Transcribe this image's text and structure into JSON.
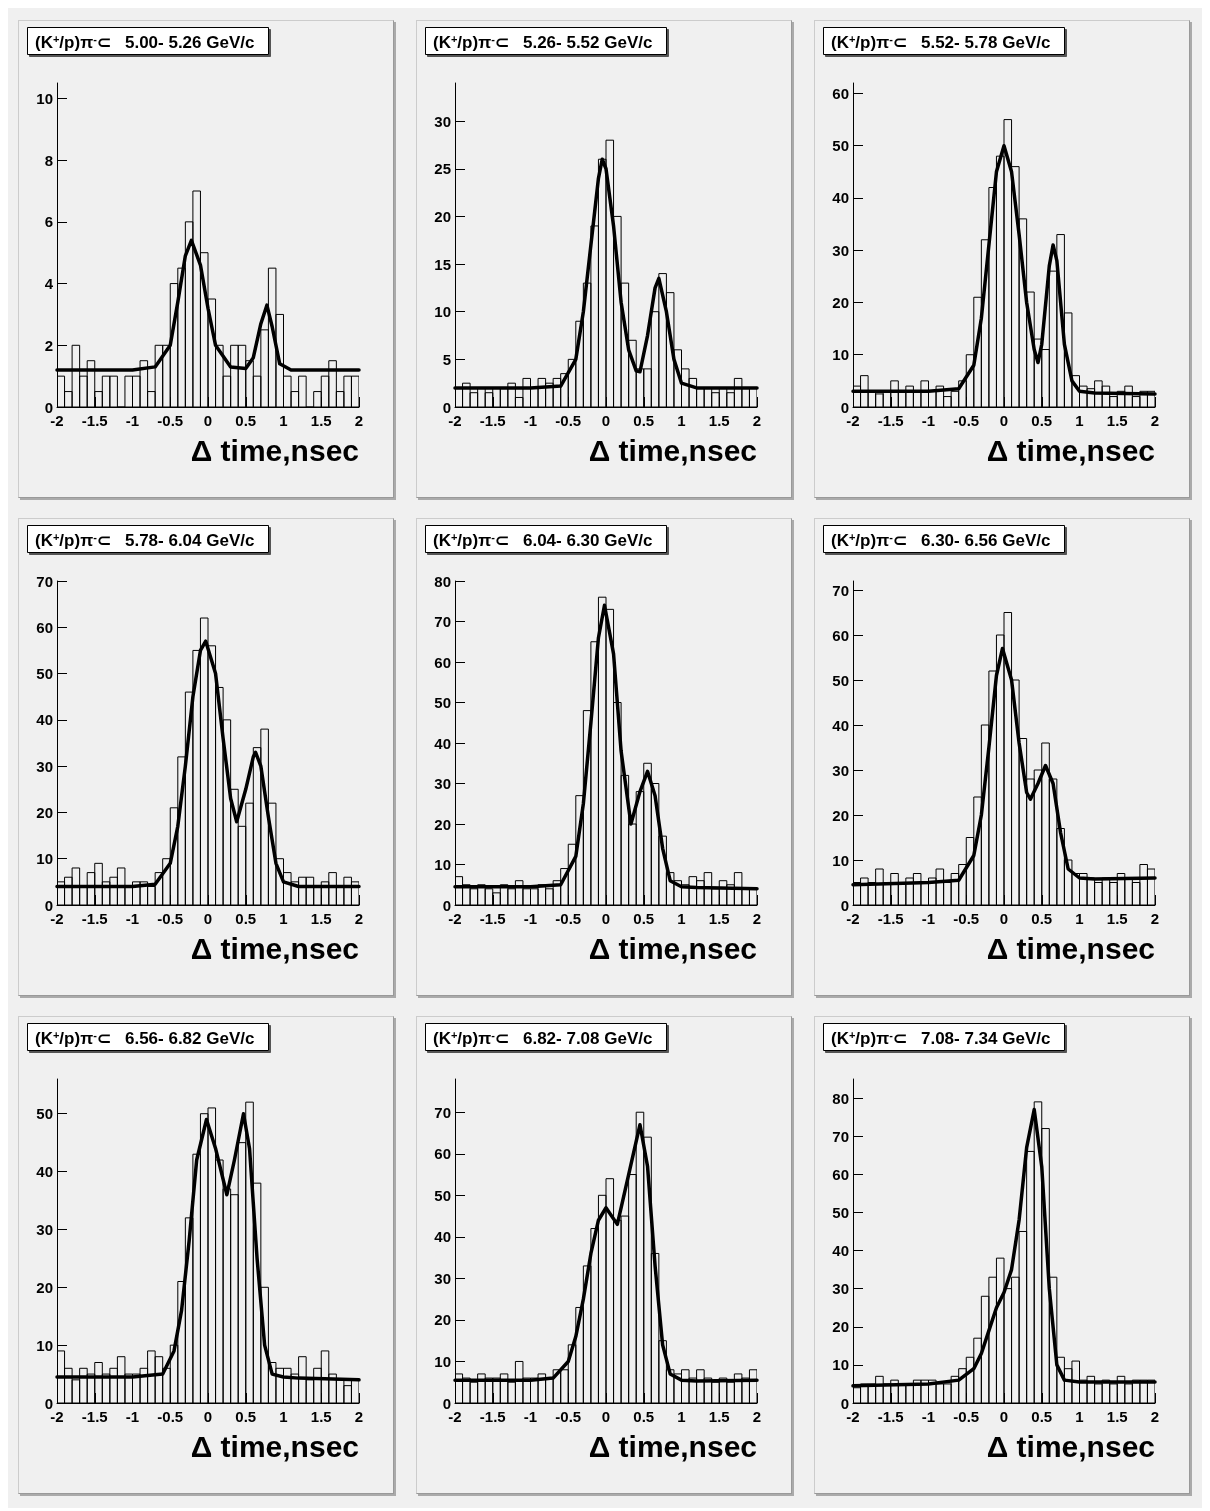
{
  "chart_data": [
    {
      "type": "histogram",
      "title": "(K$^{+}$/p)π$^{-}$⊂   5.00- 5.26 GeV/c",
      "xlabel": "Δ time,nsec",
      "xlim": [
        -2,
        2
      ],
      "xticks": [
        -2,
        -1.5,
        -1,
        -0.5,
        0,
        0.5,
        1,
        1.5,
        2
      ],
      "ylim": [
        0,
        10.5
      ],
      "yticks": [
        0,
        2,
        4,
        6,
        8,
        10
      ],
      "bins": [
        -2,
        -1.9,
        -1.8,
        -1.7,
        -1.6,
        -1.5,
        -1.4,
        -1.3,
        -1.2,
        -1.1,
        -1,
        -0.9,
        -0.8,
        -0.7,
        -0.6,
        -0.5,
        -0.4,
        -0.3,
        -0.2,
        -0.1,
        0,
        0.1,
        0.2,
        0.3,
        0.4,
        0.5,
        0.6,
        0.7,
        0.8,
        0.9,
        1,
        1.1,
        1.2,
        1.3,
        1.4,
        1.5,
        1.6,
        1.7,
        1.8,
        1.9,
        2
      ],
      "series": [
        {
          "type": "histogram",
          "color": "#000000",
          "values": [
            1,
            0.5,
            2,
            1,
            1.5,
            0.5,
            1,
            1,
            0,
            1,
            1,
            1.5,
            0.5,
            2,
            2,
            4,
            4.5,
            6,
            7,
            5,
            3.5,
            2,
            1,
            2,
            2,
            1.5,
            1,
            2.5,
            4.5,
            3,
            1,
            0.5,
            1,
            0,
            0.5,
            1,
            1.5,
            0.5,
            1,
            1
          ]
        },
        {
          "type": "line",
          "color": "#000000",
          "x": [
            -2,
            -1,
            -0.7,
            -0.5,
            -0.4,
            -0.3,
            -0.22,
            -0.1,
            0,
            0.1,
            0.3,
            0.5,
            0.6,
            0.7,
            0.78,
            0.85,
            0.95,
            1.1,
            2
          ],
          "values": [
            1.2,
            1.2,
            1.3,
            2,
            3.4,
            4.9,
            5.4,
            4.6,
            3.2,
            2,
            1.3,
            1.25,
            1.6,
            2.7,
            3.3,
            2.6,
            1.4,
            1.2,
            1.2
          ]
        }
      ]
    },
    {
      "type": "histogram",
      "title": "(K$^{+}$/p)π$^{-}$⊂   5.26- 5.52 GeV/c",
      "xlabel": "Δ time,nsec",
      "xlim": [
        -2,
        2
      ],
      "xticks": [
        -2,
        -1.5,
        -1,
        -0.5,
        0,
        0.5,
        1,
        1.5,
        2
      ],
      "ylim": [
        0,
        34
      ],
      "yticks": [
        0,
        5,
        10,
        15,
        20,
        25,
        30
      ],
      "bins": [
        -2,
        -1.9,
        -1.8,
        -1.7,
        -1.6,
        -1.5,
        -1.4,
        -1.3,
        -1.2,
        -1.1,
        -1,
        -0.9,
        -0.8,
        -0.7,
        -0.6,
        -0.5,
        -0.4,
        -0.3,
        -0.2,
        -0.1,
        0,
        0.1,
        0.2,
        0.3,
        0.4,
        0.5,
        0.6,
        0.7,
        0.8,
        0.9,
        1,
        1.1,
        1.2,
        1.3,
        1.4,
        1.5,
        1.6,
        1.7,
        1.8,
        1.9,
        2
      ],
      "series": [
        {
          "type": "histogram",
          "color": "#000000",
          "values": [
            2,
            2.5,
            1.5,
            2,
            1.5,
            2,
            2,
            2.5,
            1,
            3,
            2,
            3,
            2.5,
            3,
            3.5,
            5,
            9,
            13,
            19,
            26,
            28,
            20,
            13,
            7,
            4,
            4,
            10,
            14,
            12,
            6,
            4,
            3,
            2,
            2,
            1.5,
            2,
            1.5,
            3,
            2,
            2
          ]
        },
        {
          "type": "line",
          "color": "#000000",
          "x": [
            -2,
            -1,
            -0.6,
            -0.4,
            -0.3,
            -0.2,
            -0.1,
            -0.05,
            0,
            0.1,
            0.2,
            0.3,
            0.4,
            0.45,
            0.55,
            0.65,
            0.7,
            0.8,
            0.9,
            1,
            1.2,
            2
          ],
          "values": [
            2,
            2,
            2.2,
            5,
            10,
            17,
            24,
            26,
            25,
            19,
            11,
            6,
            3.8,
            3.7,
            7.5,
            12.5,
            13.5,
            10,
            5,
            2.5,
            2,
            2
          ]
        }
      ]
    },
    {
      "type": "histogram",
      "title": "(K$^{+}$/p)π$^{-}$⊂   5.52- 5.78 GeV/c",
      "xlabel": "Δ time,nsec",
      "xlim": [
        -2,
        2
      ],
      "xticks": [
        -2,
        -1.5,
        -1,
        -0.5,
        0,
        0.5,
        1,
        1.5,
        2
      ],
      "ylim": [
        0,
        62
      ],
      "yticks": [
        0,
        10,
        20,
        30,
        40,
        50,
        60
      ],
      "bins": [
        -2,
        -1.9,
        -1.8,
        -1.7,
        -1.6,
        -1.5,
        -1.4,
        -1.3,
        -1.2,
        -1.1,
        -1,
        -0.9,
        -0.8,
        -0.7,
        -0.6,
        -0.5,
        -0.4,
        -0.3,
        -0.2,
        -0.1,
        0,
        0.1,
        0.2,
        0.3,
        0.4,
        0.5,
        0.6,
        0.7,
        0.8,
        0.9,
        1,
        1.1,
        1.2,
        1.3,
        1.4,
        1.5,
        1.6,
        1.7,
        1.8,
        1.9,
        2
      ],
      "series": [
        {
          "type": "histogram",
          "color": "#000000",
          "values": [
            4,
            6,
            3,
            2.5,
            3,
            5,
            3,
            4,
            3,
            5,
            3,
            4,
            2,
            3,
            5,
            10,
            21,
            32,
            42,
            48,
            55,
            46,
            36,
            22,
            13,
            11,
            26,
            33,
            18,
            6,
            4,
            3.5,
            5,
            4,
            2,
            3,
            4,
            2,
            3,
            3
          ]
        },
        {
          "type": "line",
          "color": "#000000",
          "x": [
            -2,
            -1,
            -0.6,
            -0.4,
            -0.3,
            -0.2,
            -0.1,
            0,
            0.1,
            0.2,
            0.3,
            0.4,
            0.45,
            0.5,
            0.6,
            0.65,
            0.7,
            0.8,
            0.9,
            1,
            1.2,
            2
          ],
          "values": [
            3,
            3,
            3.5,
            8,
            17,
            31,
            45,
            50,
            45,
            33,
            20,
            11,
            8.5,
            12,
            27,
            31,
            28,
            12,
            5,
            3,
            2.7,
            2.5
          ]
        }
      ]
    },
    {
      "type": "histogram",
      "title": "(K$^{+}$/p)π$^{-}$⊂   5.78- 6.04 GeV/c",
      "xlabel": "Δ time,nsec",
      "xlim": [
        -2,
        2
      ],
      "xticks": [
        -2,
        -1.5,
        -1,
        -0.5,
        0,
        0.5,
        1,
        1.5,
        2
      ],
      "ylim": [
        0,
        70
      ],
      "yticks": [
        0,
        10,
        20,
        30,
        40,
        50,
        60,
        70
      ],
      "bins": [
        -2,
        -1.9,
        -1.8,
        -1.7,
        -1.6,
        -1.5,
        -1.4,
        -1.3,
        -1.2,
        -1.1,
        -1,
        -0.9,
        -0.8,
        -0.7,
        -0.6,
        -0.5,
        -0.4,
        -0.3,
        -0.2,
        -0.1,
        0,
        0.1,
        0.2,
        0.3,
        0.4,
        0.5,
        0.6,
        0.7,
        0.8,
        0.9,
        1,
        1.1,
        1.2,
        1.3,
        1.4,
        1.5,
        1.6,
        1.7,
        1.8,
        1.9,
        2
      ],
      "series": [
        {
          "type": "histogram",
          "color": "#000000",
          "values": [
            5,
            6,
            8,
            4,
            7,
            9,
            5,
            6,
            8,
            4,
            5,
            5,
            4,
            7,
            10,
            21,
            32,
            46,
            55,
            62,
            56,
            47,
            40,
            25,
            17,
            22,
            34,
            38,
            22,
            10,
            7,
            5,
            6,
            6,
            4,
            5,
            7,
            4,
            6,
            5
          ]
        },
        {
          "type": "line",
          "color": "#000000",
          "x": [
            -2,
            -1,
            -0.7,
            -0.5,
            -0.4,
            -0.3,
            -0.2,
            -0.1,
            -0.03,
            0.1,
            0.2,
            0.3,
            0.38,
            0.5,
            0.6,
            0.63,
            0.7,
            0.8,
            0.9,
            1,
            1.2,
            2
          ],
          "values": [
            4,
            4,
            4.5,
            9,
            17,
            30,
            45,
            55,
            57,
            50,
            36,
            23,
            18,
            25,
            32,
            33,
            30,
            19,
            9,
            5,
            4,
            4
          ]
        }
      ]
    },
    {
      "type": "histogram",
      "title": "(K$^{+}$/p)π$^{-}$⊂   6.04- 6.30 GeV/c",
      "xlabel": "Δ time,nsec",
      "xlim": [
        -2,
        2
      ],
      "xticks": [
        -2,
        -1.5,
        -1,
        -0.5,
        0,
        0.5,
        1,
        1.5,
        2
      ],
      "ylim": [
        0,
        80
      ],
      "yticks": [
        0,
        10,
        20,
        30,
        40,
        50,
        60,
        70,
        80
      ],
      "bins": [
        -2,
        -1.9,
        -1.8,
        -1.7,
        -1.6,
        -1.5,
        -1.4,
        -1.3,
        -1.2,
        -1.1,
        -1,
        -0.9,
        -0.8,
        -0.7,
        -0.6,
        -0.5,
        -0.4,
        -0.3,
        -0.2,
        -0.1,
        0,
        0.1,
        0.2,
        0.3,
        0.4,
        0.5,
        0.6,
        0.7,
        0.8,
        0.9,
        1,
        1.1,
        1.2,
        1.3,
        1.4,
        1.5,
        1.6,
        1.7,
        1.8,
        1.9,
        2
      ],
      "series": [
        {
          "type": "histogram",
          "color": "#000000",
          "values": [
            7,
            5,
            4,
            5,
            4,
            3,
            5,
            4,
            6,
            4,
            4,
            5,
            4,
            6,
            9,
            15,
            27,
            48,
            65,
            76,
            73,
            50,
            32,
            20,
            28,
            35,
            30,
            17,
            8,
            6,
            5,
            7,
            6,
            8,
            4,
            6,
            5,
            8,
            4,
            4
          ]
        },
        {
          "type": "line",
          "color": "#000000",
          "x": [
            -2,
            -1,
            -0.6,
            -0.4,
            -0.3,
            -0.2,
            -0.1,
            -0.02,
            0.1,
            0.2,
            0.33,
            0.45,
            0.55,
            0.65,
            0.75,
            0.85,
            1,
            1.2,
            2
          ],
          "values": [
            4.5,
            4.5,
            5,
            12,
            25,
            45,
            66,
            74,
            62,
            38,
            20,
            28,
            33,
            27,
            14,
            6,
            4.5,
            4.3,
            4
          ]
        }
      ]
    },
    {
      "type": "histogram",
      "title": "(K$^{+}$/p)π$^{-}$⊂   6.30- 6.56 GeV/c",
      "xlabel": "Δ time,nsec",
      "xlim": [
        -2,
        2
      ],
      "xticks": [
        -2,
        -1.5,
        -1,
        -0.5,
        0,
        0.5,
        1,
        1.5,
        2
      ],
      "ylim": [
        0,
        72
      ],
      "yticks": [
        0,
        10,
        20,
        30,
        40,
        50,
        60,
        70
      ],
      "bins": [
        -2,
        -1.9,
        -1.8,
        -1.7,
        -1.6,
        -1.5,
        -1.4,
        -1.3,
        -1.2,
        -1.1,
        -1,
        -0.9,
        -0.8,
        -0.7,
        -0.6,
        -0.5,
        -0.4,
        -0.3,
        -0.2,
        -0.1,
        0,
        0.1,
        0.2,
        0.3,
        0.4,
        0.5,
        0.6,
        0.7,
        0.8,
        0.9,
        1,
        1.1,
        1.2,
        1.3,
        1.4,
        1.5,
        1.6,
        1.7,
        1.8,
        1.9,
        2
      ],
      "series": [
        {
          "type": "histogram",
          "color": "#000000",
          "values": [
            5,
            6,
            5,
            8,
            5,
            7,
            5,
            6,
            7,
            5,
            6,
            8,
            5,
            7,
            9,
            15,
            24,
            40,
            52,
            60,
            65,
            50,
            37,
            28,
            30,
            36,
            28,
            17,
            10,
            7,
            7,
            6,
            5,
            6,
            5,
            7,
            6,
            5,
            9,
            8
          ]
        },
        {
          "type": "line",
          "color": "#000000",
          "x": [
            -2,
            -1,
            -0.6,
            -0.4,
            -0.3,
            -0.2,
            -0.1,
            -0.02,
            0.1,
            0.2,
            0.3,
            0.35,
            0.45,
            0.55,
            0.65,
            0.75,
            0.85,
            1,
            1.2,
            2
          ],
          "values": [
            4.5,
            5,
            5.5,
            11,
            20,
            35,
            51,
            57,
            50,
            36,
            25,
            23.5,
            27,
            31,
            27,
            16,
            8,
            6,
            5.8,
            6
          ]
        }
      ]
    },
    {
      "type": "histogram",
      "title": "(K$^{+}$/p)π$^{-}$⊂   6.56- 6.82 GeV/c",
      "xlabel": "Δ time,nsec",
      "xlim": [
        -2,
        2
      ],
      "xticks": [
        -2,
        -1.5,
        -1,
        -0.5,
        0,
        0.5,
        1,
        1.5,
        2
      ],
      "ylim": [
        0,
        56
      ],
      "yticks": [
        0,
        10,
        20,
        30,
        40,
        50
      ],
      "bins": [
        -2,
        -1.9,
        -1.8,
        -1.7,
        -1.6,
        -1.5,
        -1.4,
        -1.3,
        -1.2,
        -1.1,
        -1,
        -0.9,
        -0.8,
        -0.7,
        -0.6,
        -0.5,
        -0.4,
        -0.3,
        -0.2,
        -0.1,
        0,
        0.1,
        0.2,
        0.3,
        0.4,
        0.5,
        0.6,
        0.7,
        0.8,
        0.9,
        1,
        1.1,
        1.2,
        1.3,
        1.4,
        1.5,
        1.6,
        1.7,
        1.8,
        1.9,
        2
      ],
      "series": [
        {
          "type": "histogram",
          "color": "#000000",
          "values": [
            9,
            6,
            4,
            6,
            5,
            7,
            5,
            6,
            8,
            5,
            5,
            6,
            9,
            8,
            6,
            10,
            21,
            32,
            43,
            50,
            51,
            42,
            37,
            36,
            45,
            52,
            38,
            20,
            7,
            6,
            6,
            5,
            8,
            4,
            6,
            9,
            5,
            4,
            3,
            4
          ]
        },
        {
          "type": "line",
          "color": "#000000",
          "x": [
            -2,
            -1,
            -0.6,
            -0.45,
            -0.35,
            -0.25,
            -0.15,
            -0.02,
            0.1,
            0.25,
            0.35,
            0.47,
            0.55,
            0.65,
            0.75,
            0.85,
            1,
            1.2,
            2
          ],
          "values": [
            4.5,
            4.5,
            5,
            9,
            16,
            28,
            42,
            49,
            44,
            36,
            42,
            50,
            44,
            25,
            10,
            5,
            4.5,
            4.3,
            4
          ]
        }
      ]
    },
    {
      "type": "histogram",
      "title": "(K$^{+}$/p)π$^{-}$⊂   6.82- 7.08 GeV/c",
      "xlabel": "Δ time,nsec",
      "xlim": [
        -2,
        2
      ],
      "xticks": [
        -2,
        -1.5,
        -1,
        -0.5,
        0,
        0.5,
        1,
        1.5,
        2
      ],
      "ylim": [
        0,
        78
      ],
      "yticks": [
        0,
        10,
        20,
        30,
        40,
        50,
        60,
        70
      ],
      "bins": [
        -2,
        -1.9,
        -1.8,
        -1.7,
        -1.6,
        -1.5,
        -1.4,
        -1.3,
        -1.2,
        -1.1,
        -1,
        -0.9,
        -0.8,
        -0.7,
        -0.6,
        -0.5,
        -0.4,
        -0.3,
        -0.2,
        -0.1,
        0,
        0.1,
        0.2,
        0.3,
        0.4,
        0.5,
        0.6,
        0.7,
        0.8,
        0.9,
        1,
        1.1,
        1.2,
        1.3,
        1.4,
        1.5,
        1.6,
        1.7,
        1.8,
        1.9,
        2
      ],
      "series": [
        {
          "type": "histogram",
          "color": "#000000",
          "values": [
            7,
            6,
            5,
            7,
            6,
            6,
            7,
            5,
            10,
            6,
            6,
            7,
            6,
            8,
            8,
            14,
            23,
            33,
            42,
            50,
            54,
            44,
            45,
            55,
            70,
            64,
            36,
            15,
            8,
            7,
            8,
            6,
            8,
            6,
            5,
            6,
            5,
            7,
            6,
            8
          ]
        },
        {
          "type": "line",
          "color": "#000000",
          "x": [
            -2,
            -1,
            -0.7,
            -0.5,
            -0.4,
            -0.3,
            -0.2,
            -0.1,
            0,
            0.15,
            0.3,
            0.45,
            0.55,
            0.65,
            0.75,
            0.85,
            1,
            1.2,
            2
          ],
          "values": [
            5.5,
            5.5,
            6,
            10,
            16,
            25,
            36,
            44,
            47,
            43,
            55,
            67,
            57,
            33,
            14,
            7,
            5.5,
            5.3,
            5.5
          ]
        }
      ]
    },
    {
      "type": "histogram",
      "title": "(K$^{+}$/p)π$^{-}$⊂   7.08- 7.34 GeV/c",
      "xlabel": "Δ time,nsec",
      "xlim": [
        -2,
        2
      ],
      "xticks": [
        -2,
        -1.5,
        -1,
        -0.5,
        0,
        0.5,
        1,
        1.5,
        2
      ],
      "ylim": [
        0,
        85
      ],
      "yticks": [
        0,
        10,
        20,
        30,
        40,
        50,
        60,
        70,
        80
      ],
      "bins": [
        -2,
        -1.9,
        -1.8,
        -1.7,
        -1.6,
        -1.5,
        -1.4,
        -1.3,
        -1.2,
        -1.1,
        -1,
        -0.9,
        -0.8,
        -0.7,
        -0.6,
        -0.5,
        -0.4,
        -0.3,
        -0.2,
        -0.1,
        0,
        0.1,
        0.2,
        0.3,
        0.4,
        0.5,
        0.6,
        0.7,
        0.8,
        0.9,
        1,
        1.1,
        1.2,
        1.3,
        1.4,
        1.5,
        1.6,
        1.7,
        1.8,
        1.9,
        2
      ],
      "series": [
        {
          "type": "histogram",
          "color": "#000000",
          "values": [
            4,
            5,
            5,
            7,
            5,
            6,
            5,
            5,
            6,
            6,
            6,
            5,
            5,
            7,
            9,
            12,
            17,
            28,
            33,
            38,
            30,
            33,
            45,
            66,
            79,
            72,
            33,
            12,
            9,
            11,
            6,
            7,
            5,
            6,
            5,
            7,
            5,
            6,
            6,
            6
          ]
        },
        {
          "type": "line",
          "color": "#000000",
          "x": [
            -2,
            -1,
            -0.6,
            -0.4,
            -0.3,
            -0.2,
            -0.1,
            0,
            0.1,
            0.2,
            0.3,
            0.4,
            0.5,
            0.6,
            0.7,
            0.8,
            1,
            1.2,
            2
          ],
          "values": [
            4.5,
            5,
            6,
            9,
            13,
            19,
            25,
            29,
            35,
            48,
            67,
            77,
            62,
            30,
            10,
            6,
            5.5,
            5.5,
            5.5
          ]
        }
      ]
    }
  ]
}
